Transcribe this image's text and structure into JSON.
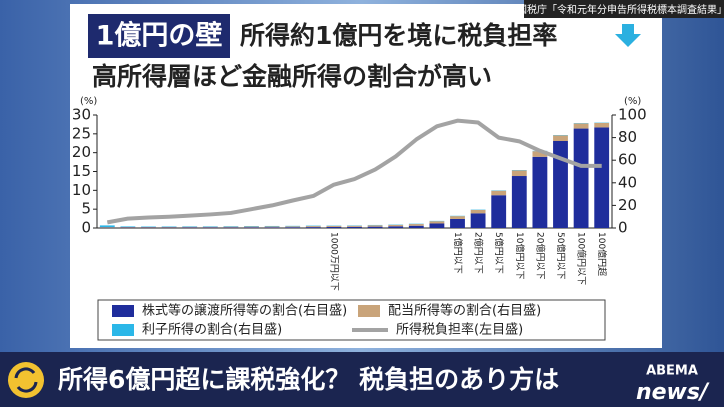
{
  "chart_data": {
    "type": "stacked_bar_line",
    "title": "1億円の壁",
    "subtitle": "所得約1億円を境に税負担率",
    "subtitle_2": "高所得層ほど金融所得の割合が高い",
    "source": "国税庁「令和元年分申告所得税標本調査結果」",
    "ylabel": "(%)",
    "y2label": "(%)",
    "categories": [
      null,
      null,
      null,
      null,
      null,
      null,
      null,
      null,
      null,
      null,
      null,
      "1000万円以下",
      null,
      null,
      null,
      null,
      null,
      "1億円以下",
      "2億円以下",
      "5億円以下",
      "10億円以下",
      "20億円以下",
      "50億円以下",
      "100億円以下",
      "100億円超"
    ],
    "series": [
      {
        "name": "株式等の譲渡所得等の割合(右目盛)",
        "color": "#1f2d9c",
        "axis": "y2",
        "kind": "bar",
        "values": [
          0.3,
          0.4,
          0.4,
          0.4,
          0.5,
          0.5,
          0.5,
          0.6,
          0.6,
          0.7,
          0.8,
          0.9,
          1,
          1.2,
          1.5,
          2,
          4,
          8,
          13,
          29,
          46,
          63,
          77,
          88,
          89
        ]
      },
      {
        "name": "配当所得等の割合(右目盛)",
        "color": "#c9a47a",
        "axis": "y2",
        "kind": "bar",
        "values": [
          0.5,
          0.5,
          0.5,
          0.6,
          0.6,
          0.6,
          0.7,
          0.7,
          0.8,
          0.8,
          0.9,
          1,
          1,
          1.2,
          1.3,
          1.5,
          2,
          2.5,
          3,
          4,
          5,
          5,
          5,
          4.5,
          4
        ]
      },
      {
        "name": "利子所得の割合(右目盛)",
        "color": "#2bb7e8",
        "axis": "y2",
        "kind": "bar",
        "values": [
          1.5,
          0.5,
          0.4,
          0.4,
          0.4,
          0.4,
          0.4,
          0.4,
          0.4,
          0.4,
          0.4,
          0.3,
          0.3,
          0.3,
          0.3,
          0.3,
          0.3,
          0.3,
          0.3,
          0.3,
          0.3,
          0.3,
          0.3,
          0.3,
          0.3
        ]
      },
      {
        "name": "所得税負担率(左目盛)",
        "color": "#a3a3a3",
        "axis": "y",
        "kind": "line",
        "values": [
          1.5,
          2.5,
          2.8,
          3,
          3.3,
          3.6,
          4,
          5,
          6,
          7.3,
          8.5,
          11.5,
          13,
          15.5,
          19,
          23.5,
          27,
          28.5,
          28,
          24,
          23,
          20.5,
          18.5,
          16.5,
          16.5
        ]
      }
    ],
    "ylim": [
      0,
      30
    ],
    "yticks": [
      0,
      5,
      10,
      15,
      20,
      25,
      30
    ],
    "y2lim": [
      0,
      100
    ],
    "y2ticks": [
      0,
      20,
      40,
      60,
      80,
      100
    ]
  },
  "banner": {
    "headline": "所得6億円超に課税強化？ 税負担のあり方は"
  },
  "logo": {
    "top": "ABEMA",
    "bottom": "news/"
  }
}
